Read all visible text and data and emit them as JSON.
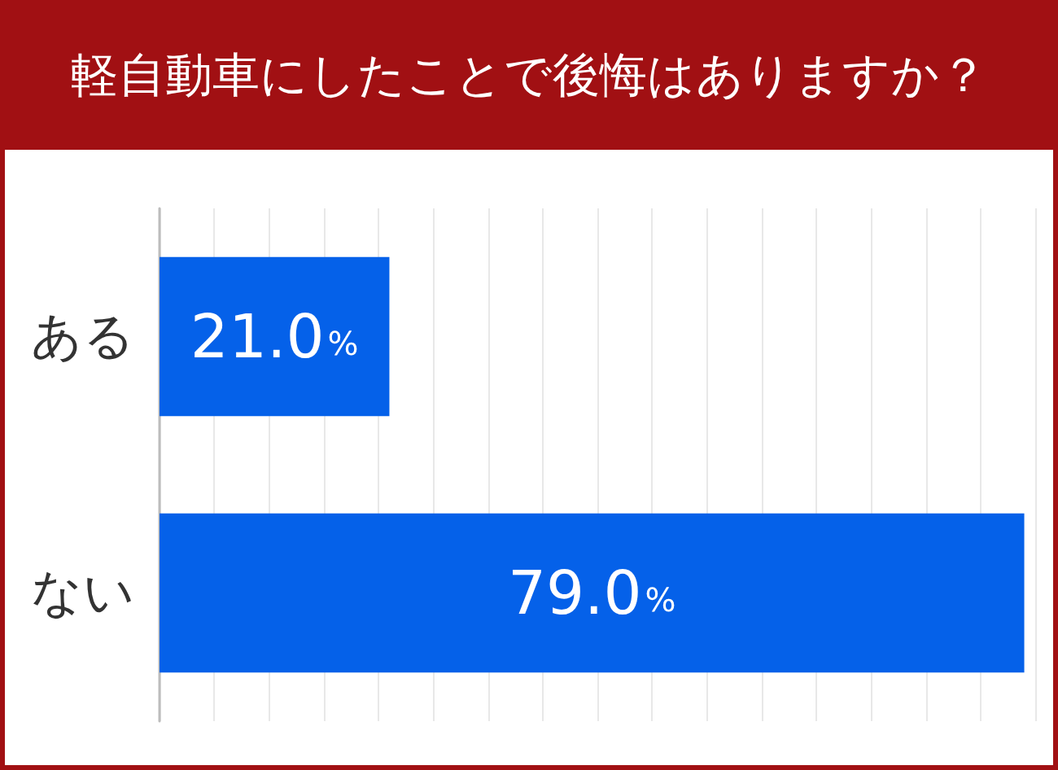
{
  "chart_data": {
    "type": "bar",
    "orientation": "horizontal",
    "title": "軽自動車にしたことで後悔はありますか？",
    "categories": [
      "ある",
      "ない"
    ],
    "values": [
      21.0,
      79.0
    ],
    "value_labels": [
      "21.0%",
      "79.0%"
    ],
    "color": "#0561e9",
    "xlim": [
      0,
      80
    ],
    "xticks": [
      {
        "value": 0,
        "label": null
      },
      {
        "value": 5,
        "label": null
      },
      {
        "value": 10,
        "label": null
      },
      {
        "value": 15,
        "label": null
      },
      {
        "value": 20,
        "label": null
      },
      {
        "value": 25,
        "label": null
      },
      {
        "value": 30,
        "label": null
      },
      {
        "value": 35,
        "label": null
      },
      {
        "value": 40,
        "label": null
      },
      {
        "value": 45,
        "label": null
      },
      {
        "value": 50,
        "label": null
      },
      {
        "value": 55,
        "label": null
      },
      {
        "value": 60,
        "label": null
      },
      {
        "value": 65,
        "label": null
      },
      {
        "value": 70,
        "label": null
      },
      {
        "value": 75,
        "label": null
      },
      {
        "value": 80,
        "label": null
      }
    ],
    "grid": "x",
    "tick_labels": "y"
  }
}
